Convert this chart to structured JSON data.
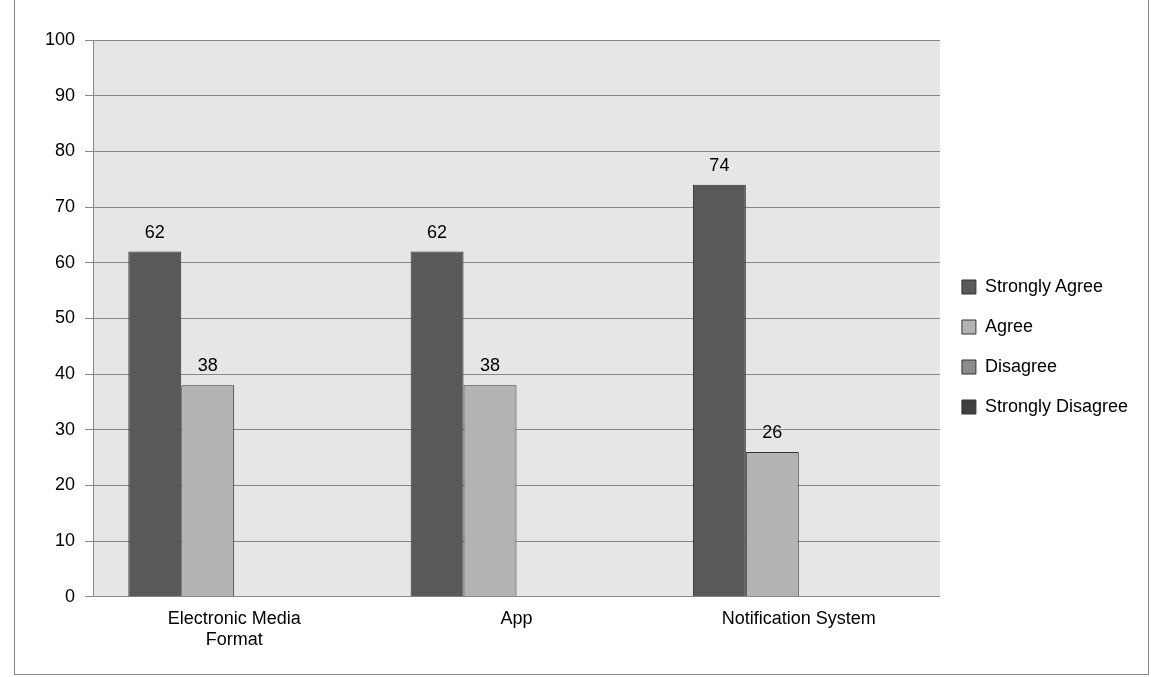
{
  "chart_data": {
    "type": "bar",
    "categories": [
      "Electronic Media Format",
      "App",
      "Notification System"
    ],
    "series": [
      {
        "name": "Strongly Agree",
        "color": "#595959",
        "values": [
          62,
          62,
          74
        ],
        "value_labels": [
          "62",
          "62",
          "74"
        ]
      },
      {
        "name": "Agree",
        "color": "#b3b3b3",
        "values": [
          38,
          38,
          26
        ],
        "value_labels": [
          "38",
          "38",
          "26"
        ]
      },
      {
        "name": "Disagree",
        "color": "#8c8c8c",
        "values": [
          null,
          null,
          null
        ]
      },
      {
        "name": "Strongly Disagree",
        "color": "#404040",
        "values": [
          null,
          null,
          null
        ]
      }
    ],
    "ylim": [
      0,
      100
    ],
    "yticks": [
      0,
      10,
      20,
      30,
      40,
      50,
      60,
      70,
      80,
      90,
      100
    ],
    "grid": "y",
    "legend": "right"
  }
}
